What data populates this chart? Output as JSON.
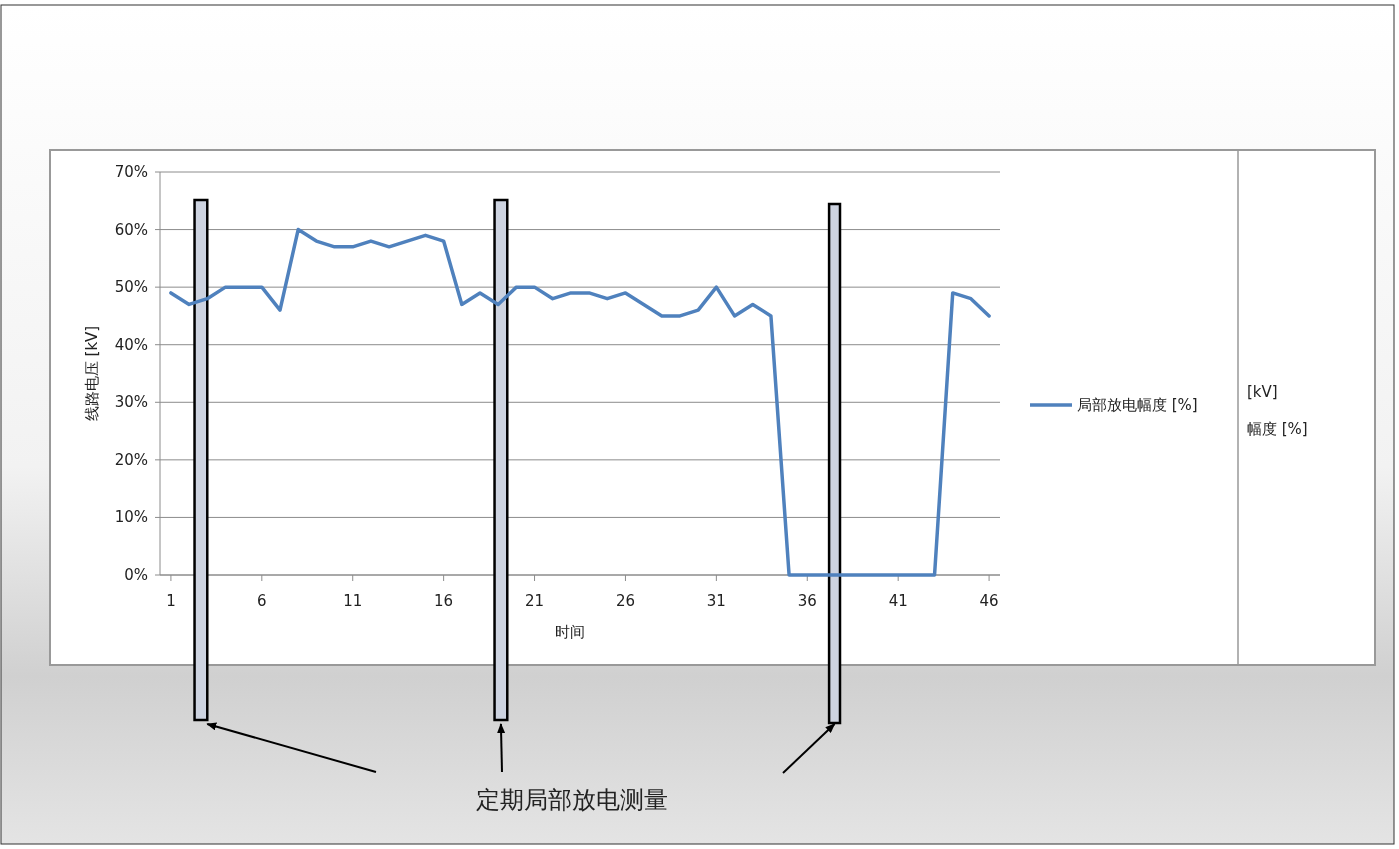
{
  "chart_data": {
    "type": "line",
    "xlabel": "时间",
    "ylabel": "线路电压 [kV]",
    "x": [
      1,
      2,
      3,
      4,
      5,
      6,
      7,
      8,
      9,
      10,
      11,
      12,
      13,
      14,
      15,
      16,
      17,
      18,
      19,
      20,
      21,
      22,
      23,
      24,
      25,
      26,
      27,
      28,
      29,
      30,
      31,
      32,
      33,
      34,
      35,
      36,
      37,
      38,
      39,
      40,
      41,
      42,
      43,
      44,
      45,
      46
    ],
    "series": [
      {
        "name": "局部放电幅度 [%]",
        "color": "#4f81bd",
        "values": [
          49,
          47,
          48,
          50,
          50,
          50,
          46,
          60,
          58,
          57,
          57,
          58,
          57,
          58,
          59,
          58,
          47,
          49,
          47,
          50,
          50,
          48,
          49,
          49,
          48,
          49,
          47,
          45,
          45,
          46,
          50,
          45,
          47,
          45,
          0,
          0,
          0,
          0,
          0,
          0,
          0,
          0,
          0,
          49,
          48,
          45
        ]
      }
    ],
    "xlim": [
      0.4,
      46.6
    ],
    "xticks": [
      1,
      6,
      11,
      16,
      21,
      26,
      31,
      36,
      41,
      46
    ],
    "ylim": [
      0,
      70
    ],
    "yticks": [
      {
        "value": 0,
        "label": "0%"
      },
      {
        "value": 10,
        "label": "10%"
      },
      {
        "value": 20,
        "label": "20%"
      },
      {
        "value": 30,
        "label": "30%"
      },
      {
        "value": 40,
        "label": "40%"
      },
      {
        "value": 50,
        "label": "50%"
      },
      {
        "value": 60,
        "label": "60%"
      },
      {
        "value": 70,
        "label": "70%"
      }
    ],
    "grid": "y",
    "legend": "right",
    "marker": "none",
    "line_style": "solid",
    "bands": [
      {
        "axis": "x",
        "from": 2.3,
        "to": 3.0,
        "color": "#cdd3e0"
      },
      {
        "axis": "x",
        "from": 18.8,
        "to": 19.5,
        "color": "#cdd3e0"
      },
      {
        "axis": "x",
        "from": 37.2,
        "to": 37.8,
        "color": "#cdd3e0"
      }
    ],
    "annotations": [
      "定期局部放电测量",
      "[kV]",
      "幅度 [%]"
    ]
  }
}
